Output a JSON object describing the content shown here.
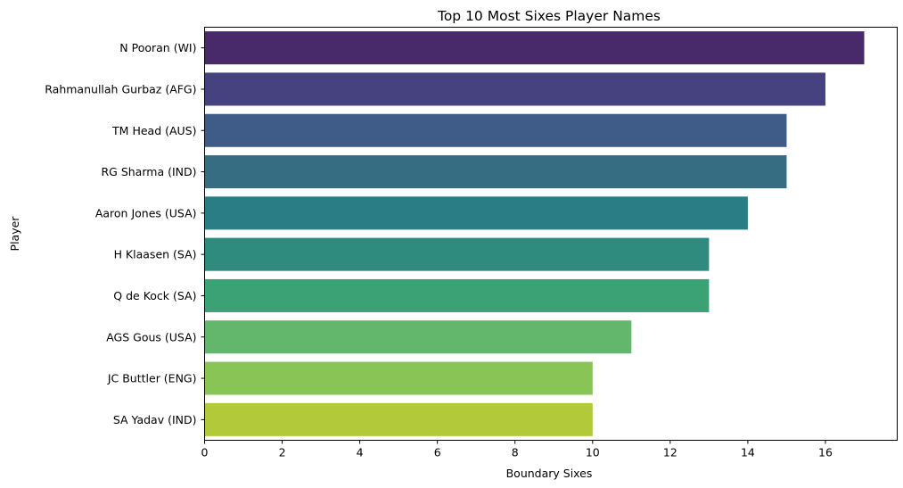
{
  "chart_data": {
    "type": "bar",
    "orientation": "horizontal",
    "title": "Top 10 Most Sixes Player Names",
    "xlabel": "Boundary Sixes",
    "ylabel": "Player",
    "xlim": [
      0,
      17.85
    ],
    "xticks": [
      0,
      2,
      4,
      6,
      8,
      10,
      12,
      14,
      16
    ],
    "grid": false,
    "categories": [
      "N Pooran (WI)",
      "Rahmanullah Gurbaz (AFG)",
      "TM Head (AUS)",
      "RG Sharma (IND)",
      "Aaron Jones (USA)",
      "H Klaasen (SA)",
      "Q de Kock (SA)",
      "AGS Gous (USA)",
      "JC Buttler (ENG)",
      "SA Yadav (IND)"
    ],
    "values": [
      17,
      16,
      15,
      15,
      14,
      13,
      13,
      11,
      10,
      10
    ],
    "colors": [
      "#482a6b",
      "#46427f",
      "#3f5b88",
      "#366d83",
      "#2a7d85",
      "#2e8b7d",
      "#3ba276",
      "#62b76d",
      "#89c457",
      "#b2c93a"
    ]
  }
}
